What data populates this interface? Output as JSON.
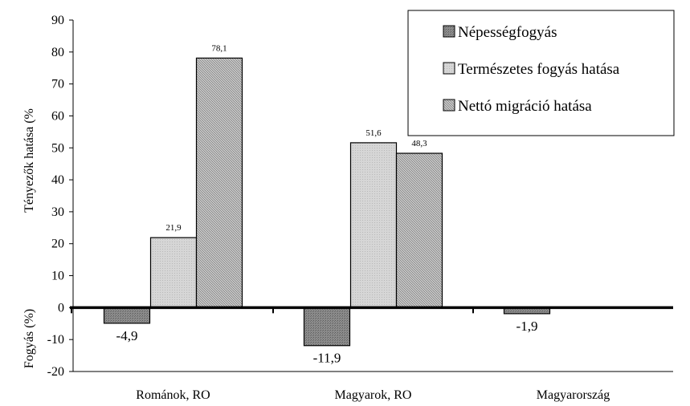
{
  "chart_data": {
    "type": "bar",
    "categories": [
      "Románok, RO",
      "Magyarok, RO",
      "Magyarország"
    ],
    "series": [
      {
        "name": "Népességfogyás",
        "values": [
          -4.9,
          -11.9,
          -1.9
        ],
        "color": "#8c8c8c"
      },
      {
        "name": "Természetes fogyás hatása",
        "values": [
          21.9,
          51.6,
          null
        ],
        "color": "#cfcfcf"
      },
      {
        "name": "Nettó migráció hatása",
        "values": [
          78.1,
          48.3,
          null
        ],
        "color": "#b4b4b4"
      }
    ],
    "data_labels": [
      [
        "-4,9",
        "21,9",
        "78,1"
      ],
      [
        "-11,9",
        "51,6",
        "48,3"
      ],
      [
        "-1,9",
        "",
        ""
      ]
    ],
    "ylabel_upper": "Tényezők hatása (%",
    "ylabel_lower": "Fogyás (%)",
    "ylim": [
      -20,
      90
    ],
    "yticks": [
      -20,
      -10,
      0,
      10,
      20,
      30,
      40,
      50,
      60,
      70,
      80,
      90
    ],
    "legend_position": "top-right",
    "grid": false
  }
}
